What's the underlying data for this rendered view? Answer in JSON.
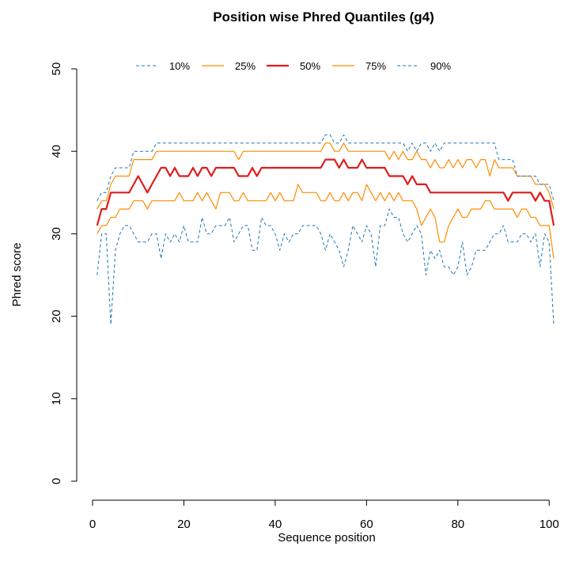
{
  "chart_data": {
    "type": "line",
    "title": "Position wise Phred Quantiles (g4)",
    "xlabel": "Sequence position",
    "ylabel": "Phred score",
    "xlim": [
      0,
      101
    ],
    "ylim": [
      0,
      50
    ],
    "xticks": [
      0,
      20,
      40,
      60,
      80,
      100
    ],
    "yticks": [
      0,
      10,
      20,
      30,
      40,
      50
    ],
    "grid": false,
    "legend_position": "top",
    "x": [
      1,
      2,
      3,
      4,
      5,
      6,
      7,
      8,
      9,
      10,
      11,
      12,
      13,
      14,
      15,
      16,
      17,
      18,
      19,
      20,
      21,
      22,
      23,
      24,
      25,
      26,
      27,
      28,
      29,
      30,
      31,
      32,
      33,
      34,
      35,
      36,
      37,
      38,
      39,
      40,
      41,
      42,
      43,
      44,
      45,
      46,
      47,
      48,
      49,
      50,
      51,
      52,
      53,
      54,
      55,
      56,
      57,
      58,
      59,
      60,
      61,
      62,
      63,
      64,
      65,
      66,
      67,
      68,
      69,
      70,
      71,
      72,
      73,
      74,
      75,
      76,
      77,
      78,
      79,
      80,
      81,
      82,
      83,
      84,
      85,
      86,
      87,
      88,
      89,
      90,
      91,
      92,
      93,
      94,
      95,
      96,
      97,
      98,
      99,
      100,
      101
    ],
    "series": [
      {
        "name": "10%",
        "color": "#1f77b4",
        "dash": "dashed",
        "width": 1,
        "values": [
          25,
          30,
          30,
          19,
          28,
          30,
          31,
          31,
          30,
          29,
          29,
          29,
          30,
          30,
          27,
          30,
          29,
          30,
          29,
          31,
          29,
          29,
          29,
          32,
          30,
          30,
          31,
          31,
          31,
          32,
          29,
          30,
          31,
          31,
          28,
          28,
          32,
          31,
          31,
          30,
          28,
          30,
          29,
          30,
          30,
          31,
          31,
          31,
          31,
          30,
          28,
          30,
          29,
          28,
          26,
          28,
          31,
          30,
          29,
          31,
          30,
          26,
          31,
          31,
          33,
          32,
          32,
          30,
          29,
          30,
          31,
          30,
          25,
          28,
          27,
          28,
          26,
          26,
          25,
          26,
          29,
          25,
          26,
          28,
          28,
          28,
          29,
          30,
          30,
          31,
          29,
          29,
          29,
          30,
          30,
          29,
          30,
          26,
          30,
          29,
          19
        ]
      },
      {
        "name": "25%",
        "color": "#ff8c00",
        "dash": "solid",
        "width": 1.2,
        "values": [
          30,
          31,
          31,
          32,
          32,
          33,
          33,
          33,
          34,
          34,
          34,
          33,
          34,
          34,
          34,
          34,
          34,
          34,
          35,
          34,
          34,
          34,
          35,
          34,
          35,
          34,
          33,
          35,
          35,
          35,
          34,
          34,
          35,
          34,
          34,
          34,
          34,
          34,
          35,
          34,
          35,
          34,
          34,
          34,
          36,
          35,
          35,
          35,
          35,
          34,
          34,
          35,
          34,
          34,
          35,
          34,
          35,
          35,
          34,
          36,
          35,
          34,
          35,
          34,
          35,
          34,
          35,
          34,
          34,
          34,
          33,
          31,
          32,
          33,
          32,
          29,
          29,
          31,
          32,
          33,
          32,
          32,
          33,
          33,
          33,
          34,
          34,
          33,
          33,
          33,
          33,
          33,
          32,
          33,
          33,
          32,
          32,
          31,
          31,
          31,
          27
        ]
      },
      {
        "name": "50%",
        "color": "#dd1c1c",
        "dash": "solid",
        "width": 2.2,
        "values": [
          31,
          33,
          33,
          35,
          35,
          35,
          35,
          35,
          36,
          37,
          36,
          35,
          36,
          37,
          38,
          38,
          37,
          38,
          37,
          37,
          37,
          38,
          37,
          38,
          38,
          37,
          38,
          38,
          38,
          38,
          38,
          37,
          37,
          37,
          38,
          37,
          38,
          38,
          38,
          38,
          38,
          38,
          38,
          38,
          38,
          38,
          38,
          38,
          38,
          38,
          39,
          39,
          39,
          38,
          39,
          38,
          38,
          38,
          39,
          38,
          38,
          38,
          38,
          38,
          37,
          37,
          37,
          37,
          36,
          37,
          36,
          36,
          36,
          35,
          35,
          35,
          35,
          35,
          35,
          35,
          35,
          35,
          35,
          35,
          35,
          35,
          35,
          35,
          35,
          35,
          34,
          35,
          35,
          35,
          35,
          35,
          34,
          35,
          34,
          34,
          31
        ]
      },
      {
        "name": "75%",
        "color": "#ff8c00",
        "dash": "solid",
        "width": 1.2,
        "values": [
          33,
          34,
          34,
          36,
          37,
          37,
          37,
          37,
          39,
          39,
          39,
          39,
          39,
          40,
          40,
          40,
          40,
          40,
          40,
          40,
          40,
          40,
          40,
          40,
          40,
          40,
          40,
          40,
          40,
          40,
          40,
          39,
          40,
          40,
          40,
          40,
          40,
          40,
          40,
          40,
          40,
          40,
          40,
          40,
          40,
          40,
          40,
          40,
          40,
          40,
          41,
          41,
          40,
          40,
          41,
          40,
          40,
          40,
          40,
          40,
          40,
          40,
          40,
          40,
          39,
          40,
          39,
          40,
          39,
          39,
          40,
          39,
          39,
          38,
          39,
          38,
          38,
          39,
          38,
          39,
          38,
          39,
          39,
          38,
          39,
          39,
          37,
          39,
          38,
          38,
          38,
          38,
          37,
          37,
          37,
          37,
          36,
          36,
          36,
          35,
          33
        ]
      },
      {
        "name": "90%",
        "color": "#1f77b4",
        "dash": "dashed",
        "width": 1,
        "values": [
          34,
          35,
          35,
          37,
          38,
          38,
          38,
          38,
          40,
          40,
          40,
          40,
          40,
          41,
          41,
          41,
          41,
          41,
          41,
          41,
          41,
          41,
          41,
          41,
          41,
          41,
          41,
          41,
          41,
          41,
          41,
          41,
          41,
          41,
          41,
          41,
          41,
          41,
          41,
          41,
          41,
          41,
          41,
          41,
          41,
          41,
          41,
          41,
          41,
          41,
          42,
          42,
          41,
          41,
          42,
          41,
          41,
          41,
          41,
          41,
          41,
          41,
          41,
          41,
          41,
          41,
          41,
          41,
          40,
          41,
          40,
          41,
          41,
          40,
          41,
          40,
          41,
          41,
          41,
          41,
          41,
          41,
          41,
          41,
          41,
          41,
          41,
          41,
          39,
          39,
          39,
          39,
          37,
          37,
          37,
          37,
          37,
          36,
          36,
          36,
          34
        ]
      }
    ]
  }
}
